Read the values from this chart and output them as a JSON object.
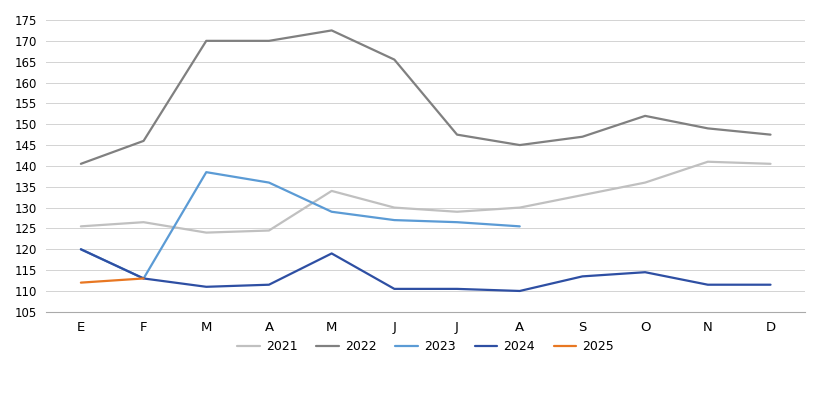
{
  "months": [
    "E",
    "F",
    "M",
    "A",
    "M",
    "J",
    "J",
    "A",
    "S",
    "O",
    "N",
    "D"
  ],
  "series_2021": [
    125.5,
    126.5,
    124.0,
    124.5,
    134.0,
    130.0,
    129.0,
    130.0,
    133.0,
    136.0,
    141.0,
    140.5
  ],
  "series_2022": [
    140.5,
    146.0,
    170.0,
    170.0,
    172.5,
    165.5,
    147.5,
    145.0,
    147.0,
    152.0,
    149.0,
    147.5
  ],
  "series_2023": [
    120.0,
    113.0,
    138.5,
    136.0,
    129.0,
    127.0,
    126.5,
    125.5,
    null,
    null,
    null,
    null
  ],
  "series_2024": [
    120.0,
    113.0,
    111.0,
    111.5,
    119.0,
    110.5,
    110.5,
    110.0,
    113.5,
    114.5,
    111.5,
    111.5
  ],
  "series_2025": [
    112.0,
    113.0,
    null,
    null,
    null,
    null,
    null,
    null,
    null,
    null,
    null,
    null
  ],
  "colors": {
    "2021": "#c0c0c0",
    "2022": "#808080",
    "2023": "#5b9bd5",
    "2024": "#2e4fa3",
    "2025": "#e87722"
  },
  "ylim": [
    105,
    175
  ],
  "yticks": [
    105,
    110,
    115,
    120,
    125,
    130,
    135,
    140,
    145,
    150,
    155,
    160,
    165,
    170,
    175
  ],
  "background_color": "#ffffff",
  "grid_color": "#d3d3d3",
  "linewidth": 1.6
}
